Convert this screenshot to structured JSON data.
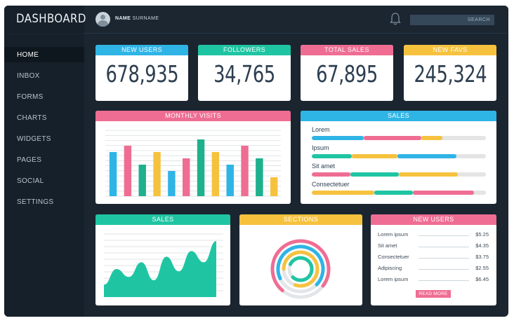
{
  "header": {
    "brand": "DASHBOARD",
    "user_first": "NAME",
    "user_last": "SURNAME",
    "search_placeholder": "SEARCH"
  },
  "sidebar": {
    "items": [
      {
        "label": "HOME",
        "active": true
      },
      {
        "label": "INBOX"
      },
      {
        "label": "FORMS"
      },
      {
        "label": "CHARTS"
      },
      {
        "label": "WIDGETS"
      },
      {
        "label": "PAGES"
      },
      {
        "label": "SOCIAL"
      },
      {
        "label": "SETTINGS"
      }
    ]
  },
  "stats": [
    {
      "title": "NEW USERS",
      "value": "678,935",
      "color": "#2fb4e6"
    },
    {
      "title": "FOLLOWERS",
      "value": "34,765",
      "color": "#1fc5a2"
    },
    {
      "title": "TOTAL SALES",
      "value": "67,895",
      "color": "#ef6d93"
    },
    {
      "title": "NEW FAVS",
      "value": "245,324",
      "color": "#f6c23e"
    }
  ],
  "monthly_visits": {
    "title": "MONTHLY VISITS",
    "color": "#ef6d93",
    "bars": [
      {
        "value": 70,
        "color": "#2fb4e6"
      },
      {
        "value": 80,
        "color": "#ef6d93"
      },
      {
        "value": 50,
        "color": "#1fb08d"
      },
      {
        "value": 70,
        "color": "#f6c23e"
      },
      {
        "value": 40,
        "color": "#2fb4e6"
      },
      {
        "value": 60,
        "color": "#ef6d93"
      },
      {
        "value": 90,
        "color": "#1fb08d"
      },
      {
        "value": 70,
        "color": "#f6c23e"
      },
      {
        "value": 50,
        "color": "#2fb4e6"
      },
      {
        "value": 80,
        "color": "#ef6d93"
      },
      {
        "value": 60,
        "color": "#1fb08d"
      },
      {
        "value": 30,
        "color": "#f6c23e"
      }
    ]
  },
  "sales_bars": {
    "title": "SALES",
    "color": "#2fb4e6",
    "rows": [
      {
        "label": "Lorem",
        "segments": [
          {
            "value": 30,
            "color": "#2fb4e6"
          },
          {
            "value": 33,
            "color": "#ef6d93"
          },
          {
            "value": 12,
            "color": "#f6c23e"
          }
        ]
      },
      {
        "label": "Ipsum",
        "segments": [
          {
            "value": 23,
            "color": "#1fc5a2"
          },
          {
            "value": 26,
            "color": "#f6c23e"
          },
          {
            "value": 34,
            "color": "#2fb4e6"
          }
        ]
      },
      {
        "label": "Sit amet",
        "segments": [
          {
            "value": 22,
            "color": "#ef6d93"
          },
          {
            "value": 28,
            "color": "#1fc5a2"
          },
          {
            "value": 34,
            "color": "#f6c23e"
          }
        ]
      },
      {
        "label": "Consectetuer",
        "segments": [
          {
            "value": 36,
            "color": "#f6c23e"
          },
          {
            "value": 22,
            "color": "#1fc5a2"
          },
          {
            "value": 35,
            "color": "#ef6d93"
          }
        ]
      }
    ]
  },
  "sales_area": {
    "title": "SALES",
    "color": "#1fc5a2",
    "values": [
      22,
      50,
      36,
      62,
      30,
      72,
      46,
      82,
      62,
      100
    ]
  },
  "sections": {
    "title": "SECTIONS",
    "color": "#f6c23e",
    "rings": [
      {
        "fraction": 0.74,
        "color": "#ef6d93"
      },
      {
        "fraction": 0.69,
        "color": "#2fb4e6"
      },
      {
        "fraction": 0.8,
        "color": "#f6c23e"
      },
      {
        "fraction": 0.8,
        "color": "#1fc5a2"
      }
    ]
  },
  "new_users": {
    "title": "NEW USERS",
    "color": "#ef6d93",
    "rows": [
      {
        "label": "Lorem ipsum",
        "value": "$5.25"
      },
      {
        "label": "Sit amet",
        "value": "$4.35"
      },
      {
        "label": "Consectetuer",
        "value": "$3.75"
      },
      {
        "label": "Adipiscing",
        "value": "$2.55"
      },
      {
        "label": "Lorem ipsum",
        "value": "$6.45"
      }
    ],
    "button_label": "READ MORE"
  }
}
